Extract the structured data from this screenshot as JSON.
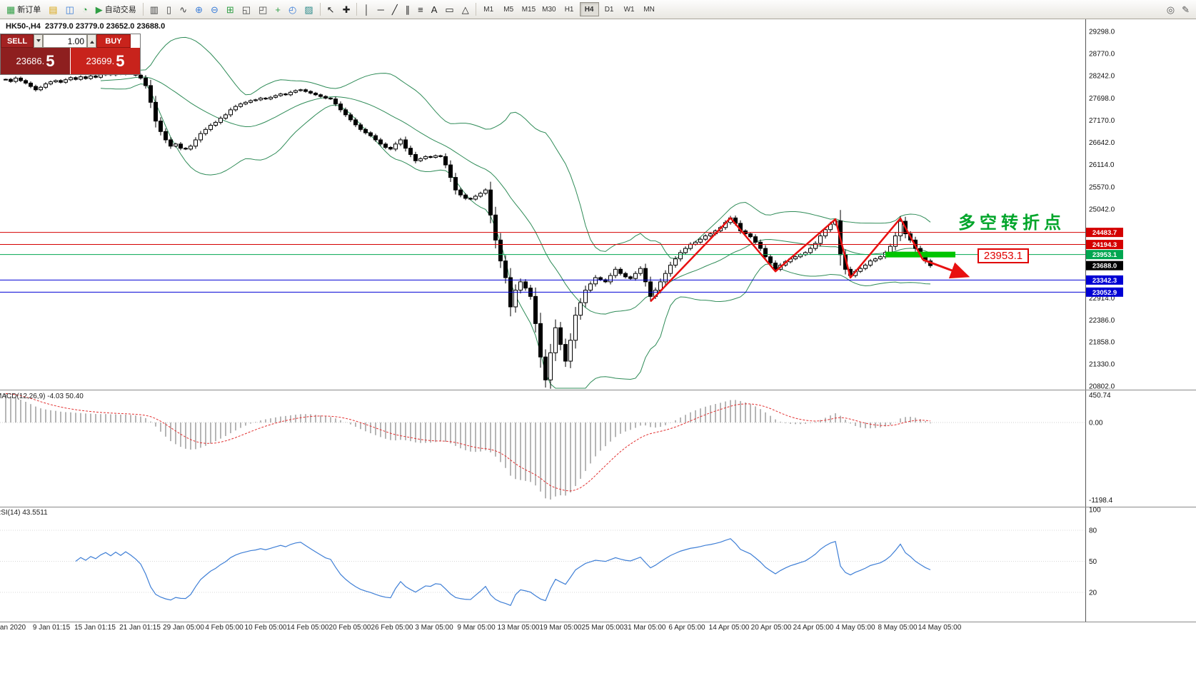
{
  "toolbar": {
    "items": [
      {
        "t": "btn",
        "name": "new-order-button",
        "icon": "new-order-icon",
        "glyph": "▦",
        "color": "#2f9e44",
        "label": "新订单"
      },
      {
        "t": "icon",
        "name": "market-watch-button",
        "icon": "market-watch-icon",
        "glyph": "▤",
        "color": "#d9a514"
      },
      {
        "t": "icon",
        "name": "data-window-button",
        "icon": "data-window-icon",
        "glyph": "◫",
        "color": "#3b7dd8"
      },
      {
        "t": "icon",
        "name": "navigator-button",
        "icon": "navigator-icon",
        "glyph": "◔",
        "color": "#2f9e44"
      },
      {
        "t": "btn",
        "name": "auto-trading-button",
        "icon": "play-icon",
        "glyph": "▶",
        "color": "#2f9e44",
        "label": "自动交易"
      },
      {
        "t": "sep"
      },
      {
        "t": "icon",
        "name": "bar-chart-button",
        "icon": "bar-chart-icon",
        "glyph": "▥",
        "color": "#444"
      },
      {
        "t": "icon",
        "name": "candlestick-chart-button",
        "icon": "candlestick-icon",
        "glyph": "▯",
        "color": "#444"
      },
      {
        "t": "icon",
        "name": "line-chart-button",
        "icon": "line-chart-icon",
        "glyph": "∿",
        "color": "#444"
      },
      {
        "t": "icon",
        "name": "zoom-in-button",
        "icon": "zoom-in-icon",
        "glyph": "⊕",
        "color": "#3b7dd8"
      },
      {
        "t": "icon",
        "name": "zoom-out-button",
        "icon": "zoom-out-icon",
        "glyph": "⊖",
        "color": "#3b7dd8"
      },
      {
        "t": "icon",
        "name": "tile-windows-button",
        "icon": "tile-windows-icon",
        "glyph": "⊞",
        "color": "#2f9e44"
      },
      {
        "t": "icon",
        "name": "new-chart-button",
        "icon": "new-chart-icon",
        "glyph": "◱",
        "color": "#444"
      },
      {
        "t": "icon",
        "name": "profiles-button",
        "icon": "profiles-icon",
        "glyph": "◰",
        "color": "#444"
      },
      {
        "t": "icon",
        "name": "add-indicator-button",
        "icon": "plus-icon",
        "glyph": "+",
        "color": "#2f9e44"
      },
      {
        "t": "icon",
        "name": "period-button",
        "icon": "clock-icon",
        "glyph": "◴",
        "color": "#3b7dd8"
      },
      {
        "t": "icon",
        "name": "template-button",
        "icon": "template-icon",
        "glyph": "▨",
        "color": "#2e8b8b"
      },
      {
        "t": "sep"
      },
      {
        "t": "icon",
        "name": "cursor-button",
        "icon": "cursor-icon",
        "glyph": "↖",
        "color": "#222"
      },
      {
        "t": "icon",
        "name": "crosshair-button",
        "icon": "crosshair-icon",
        "glyph": "✚",
        "color": "#222"
      },
      {
        "t": "sep"
      },
      {
        "t": "icon",
        "name": "vertical-line-button",
        "icon": "vertical-line-icon",
        "glyph": "│",
        "color": "#222"
      },
      {
        "t": "icon",
        "name": "horizontal-line-button",
        "icon": "horizontal-line-icon",
        "glyph": "─",
        "color": "#222"
      },
      {
        "t": "icon",
        "name": "trendline-button",
        "icon": "trendline-icon",
        "glyph": "╱",
        "color": "#222"
      },
      {
        "t": "icon",
        "name": "channel-button",
        "icon": "channel-icon",
        "glyph": "∥",
        "color": "#222"
      },
      {
        "t": "icon",
        "name": "fibonacci-button",
        "icon": "fibonacci-icon",
        "glyph": "≡",
        "color": "#222"
      },
      {
        "t": "icon",
        "name": "text-button",
        "icon": "text-icon",
        "glyph": "A",
        "color": "#222"
      },
      {
        "t": "icon",
        "name": "text-label-button",
        "icon": "label-icon",
        "glyph": "▭",
        "color": "#222"
      },
      {
        "t": "icon",
        "name": "shapes-button",
        "icon": "shapes-icon",
        "glyph": "△",
        "color": "#222"
      },
      {
        "t": "sep"
      }
    ],
    "timeframes": [
      "M1",
      "M5",
      "M15",
      "M30",
      "H1",
      "H4",
      "D1",
      "W1",
      "MN"
    ],
    "active_timeframe": "H4",
    "right_icons": [
      {
        "name": "search-button",
        "icon": "search-icon",
        "glyph": "◎",
        "color": "#555"
      },
      {
        "name": "quick-draw-button",
        "icon": "pencil-icon",
        "glyph": "✎",
        "color": "#555"
      }
    ]
  },
  "chart_header": {
    "title": "HK50-,H4  23779.0 23779.0 23652.0 23688.0"
  },
  "trade_panel": {
    "sell_label": "SELL",
    "buy_label": "BUY",
    "volume": "1.00",
    "sell_price_main": "23686.",
    "sell_price_big": "5",
    "buy_price_main": "23699.",
    "buy_price_big": "5"
  },
  "annotations": {
    "turning_point_text": "多空转折点",
    "price_callout": "23953.1"
  },
  "indicators": {
    "macd_label": "MACD(12,26,9) -4.03 50.40",
    "rsi_label": "RSI(14) 43.5511"
  },
  "chart_data": {
    "type": "candlestick+indicators",
    "symbol_period": "HK50-,H4",
    "last_bar_ohlc": {
      "open": 23779.0,
      "high": 23779.0,
      "low": 23652.0,
      "close": 23688.0
    },
    "closes": [
      28150,
      28100,
      28180,
      28120,
      28060,
      27980,
      27900,
      27960,
      28040,
      28090,
      28120,
      28080,
      28140,
      28190,
      28150,
      28210,
      28170,
      28230,
      28200,
      28260,
      28300,
      28260,
      28320,
      28280,
      28340,
      28300,
      28250,
      28180,
      28000,
      27600,
      27150,
      26900,
      26700,
      26550,
      26600,
      26500,
      26480,
      26550,
      26700,
      26850,
      26950,
      27050,
      27120,
      27220,
      27300,
      27420,
      27500,
      27560,
      27600,
      27640,
      27660,
      27700,
      27680,
      27720,
      27760,
      27800,
      27780,
      27840,
      27880,
      27900,
      27860,
      27820,
      27780,
      27740,
      27700,
      27680,
      27560,
      27420,
      27300,
      27180,
      27060,
      26950,
      26870,
      26800,
      26700,
      26600,
      26520,
      26480,
      26600,
      26700,
      26500,
      26350,
      26200,
      26250,
      26300,
      26280,
      26320,
      26300,
      26100,
      25800,
      25500,
      25380,
      25300,
      25280,
      25350,
      25420,
      25500,
      24900,
      24300,
      23800,
      23400,
      22700,
      23100,
      23300,
      23150,
      22950,
      22300,
      21500,
      20950,
      21600,
      22200,
      21800,
      21400,
      21900,
      22500,
      22800,
      23100,
      23250,
      23400,
      23350,
      23300,
      23450,
      23600,
      23500,
      23420,
      23380,
      23500,
      23620,
      23300,
      22950,
      23100,
      23300,
      23500,
      23700,
      23850,
      24000,
      24100,
      24200,
      24250,
      24320,
      24400,
      24450,
      24520,
      24600,
      24720,
      24830,
      24700,
      24520,
      24450,
      24380,
      24250,
      24100,
      23900,
      23750,
      23600,
      23700,
      23780,
      23850,
      23900,
      23950,
      24000,
      24100,
      24220,
      24400,
      24550,
      24680,
      24760,
      23950,
      23600,
      23450,
      23550,
      23620,
      23700,
      23800,
      23850,
      23900,
      24000,
      24150,
      24400,
      24750,
      24450,
      24300,
      24100,
      23950,
      23800,
      23688
    ],
    "price_axis": {
      "max": 29298.0,
      "min": 20802.0,
      "labels": [
        29298.0,
        28770.0,
        28242.0,
        27698.0,
        27170.0,
        26642.0,
        26114.0,
        25570.0,
        25042.0,
        22914.0,
        22386.0,
        21858.0,
        21330.0,
        20802.0
      ]
    },
    "levels": [
      {
        "value": 24483.7,
        "color": "#d40000"
      },
      {
        "value": 24194.3,
        "color": "#d40000"
      },
      {
        "value": 23953.1,
        "color": "#00a650"
      },
      {
        "value": 23342.3,
        "color": "#0000d4"
      },
      {
        "value": 23052.9,
        "color": "#0000d4"
      }
    ],
    "current_price": 23688.0,
    "objects": {
      "zigzag": {
        "color": "#e81010",
        "width": 2.5,
        "points": [
          [
            129,
            22830
          ],
          [
            145,
            24830
          ],
          [
            154,
            23550
          ],
          [
            166,
            24800
          ],
          [
            169,
            23400
          ],
          [
            179,
            24820
          ],
          [
            183.5,
            23830
          ]
        ]
      },
      "arrow": {
        "color": "#e81010",
        "width": 3,
        "from": [
          183.5,
          23830
        ],
        "to": [
          192.5,
          23430
        ]
      },
      "highlight_bar": {
        "color": "#00c400",
        "price": 23953.1,
        "from": 176,
        "to": 190,
        "height": 8
      }
    },
    "macd_axis": {
      "top_label": "450.74",
      "zero_label": "0.00",
      "bottom_label": "-1198.4"
    },
    "rsi_axis_labels": [
      "100",
      "80",
      "50",
      "20"
    ],
    "time_labels": [
      [
        "an 2020",
        18
      ],
      [
        "9 Jan 01:15",
        72
      ],
      [
        "15 Jan 01:15",
        133
      ],
      [
        "21 Jan 01:15",
        196
      ],
      [
        "29 Jan 05:00",
        257
      ],
      [
        "4 Feb 05:00",
        314
      ],
      [
        "10 Feb 05:00",
        372
      ],
      [
        "14 Feb 05:00",
        431
      ],
      [
        "20 Feb 05:00",
        490
      ],
      [
        "26 Feb 05:00",
        549
      ],
      [
        "3 Mar 05:00",
        608
      ],
      [
        "9 Mar 05:00",
        667
      ],
      [
        "13 Mar 05:00",
        726
      ],
      [
        "19 Mar 05:00",
        785
      ],
      [
        "25 Mar 05:00",
        844
      ],
      [
        "31 Mar 05:00",
        903
      ],
      [
        "6 Apr 05:00",
        962
      ],
      [
        "14 Apr 05:00",
        1021
      ],
      [
        "20 Apr 05:00",
        1080
      ],
      [
        "24 Apr 05:00",
        1139
      ],
      [
        "4 May 05:00",
        1198
      ],
      [
        "8 May 05:00",
        1257
      ],
      [
        "14 May 05:00",
        1316
      ]
    ]
  }
}
